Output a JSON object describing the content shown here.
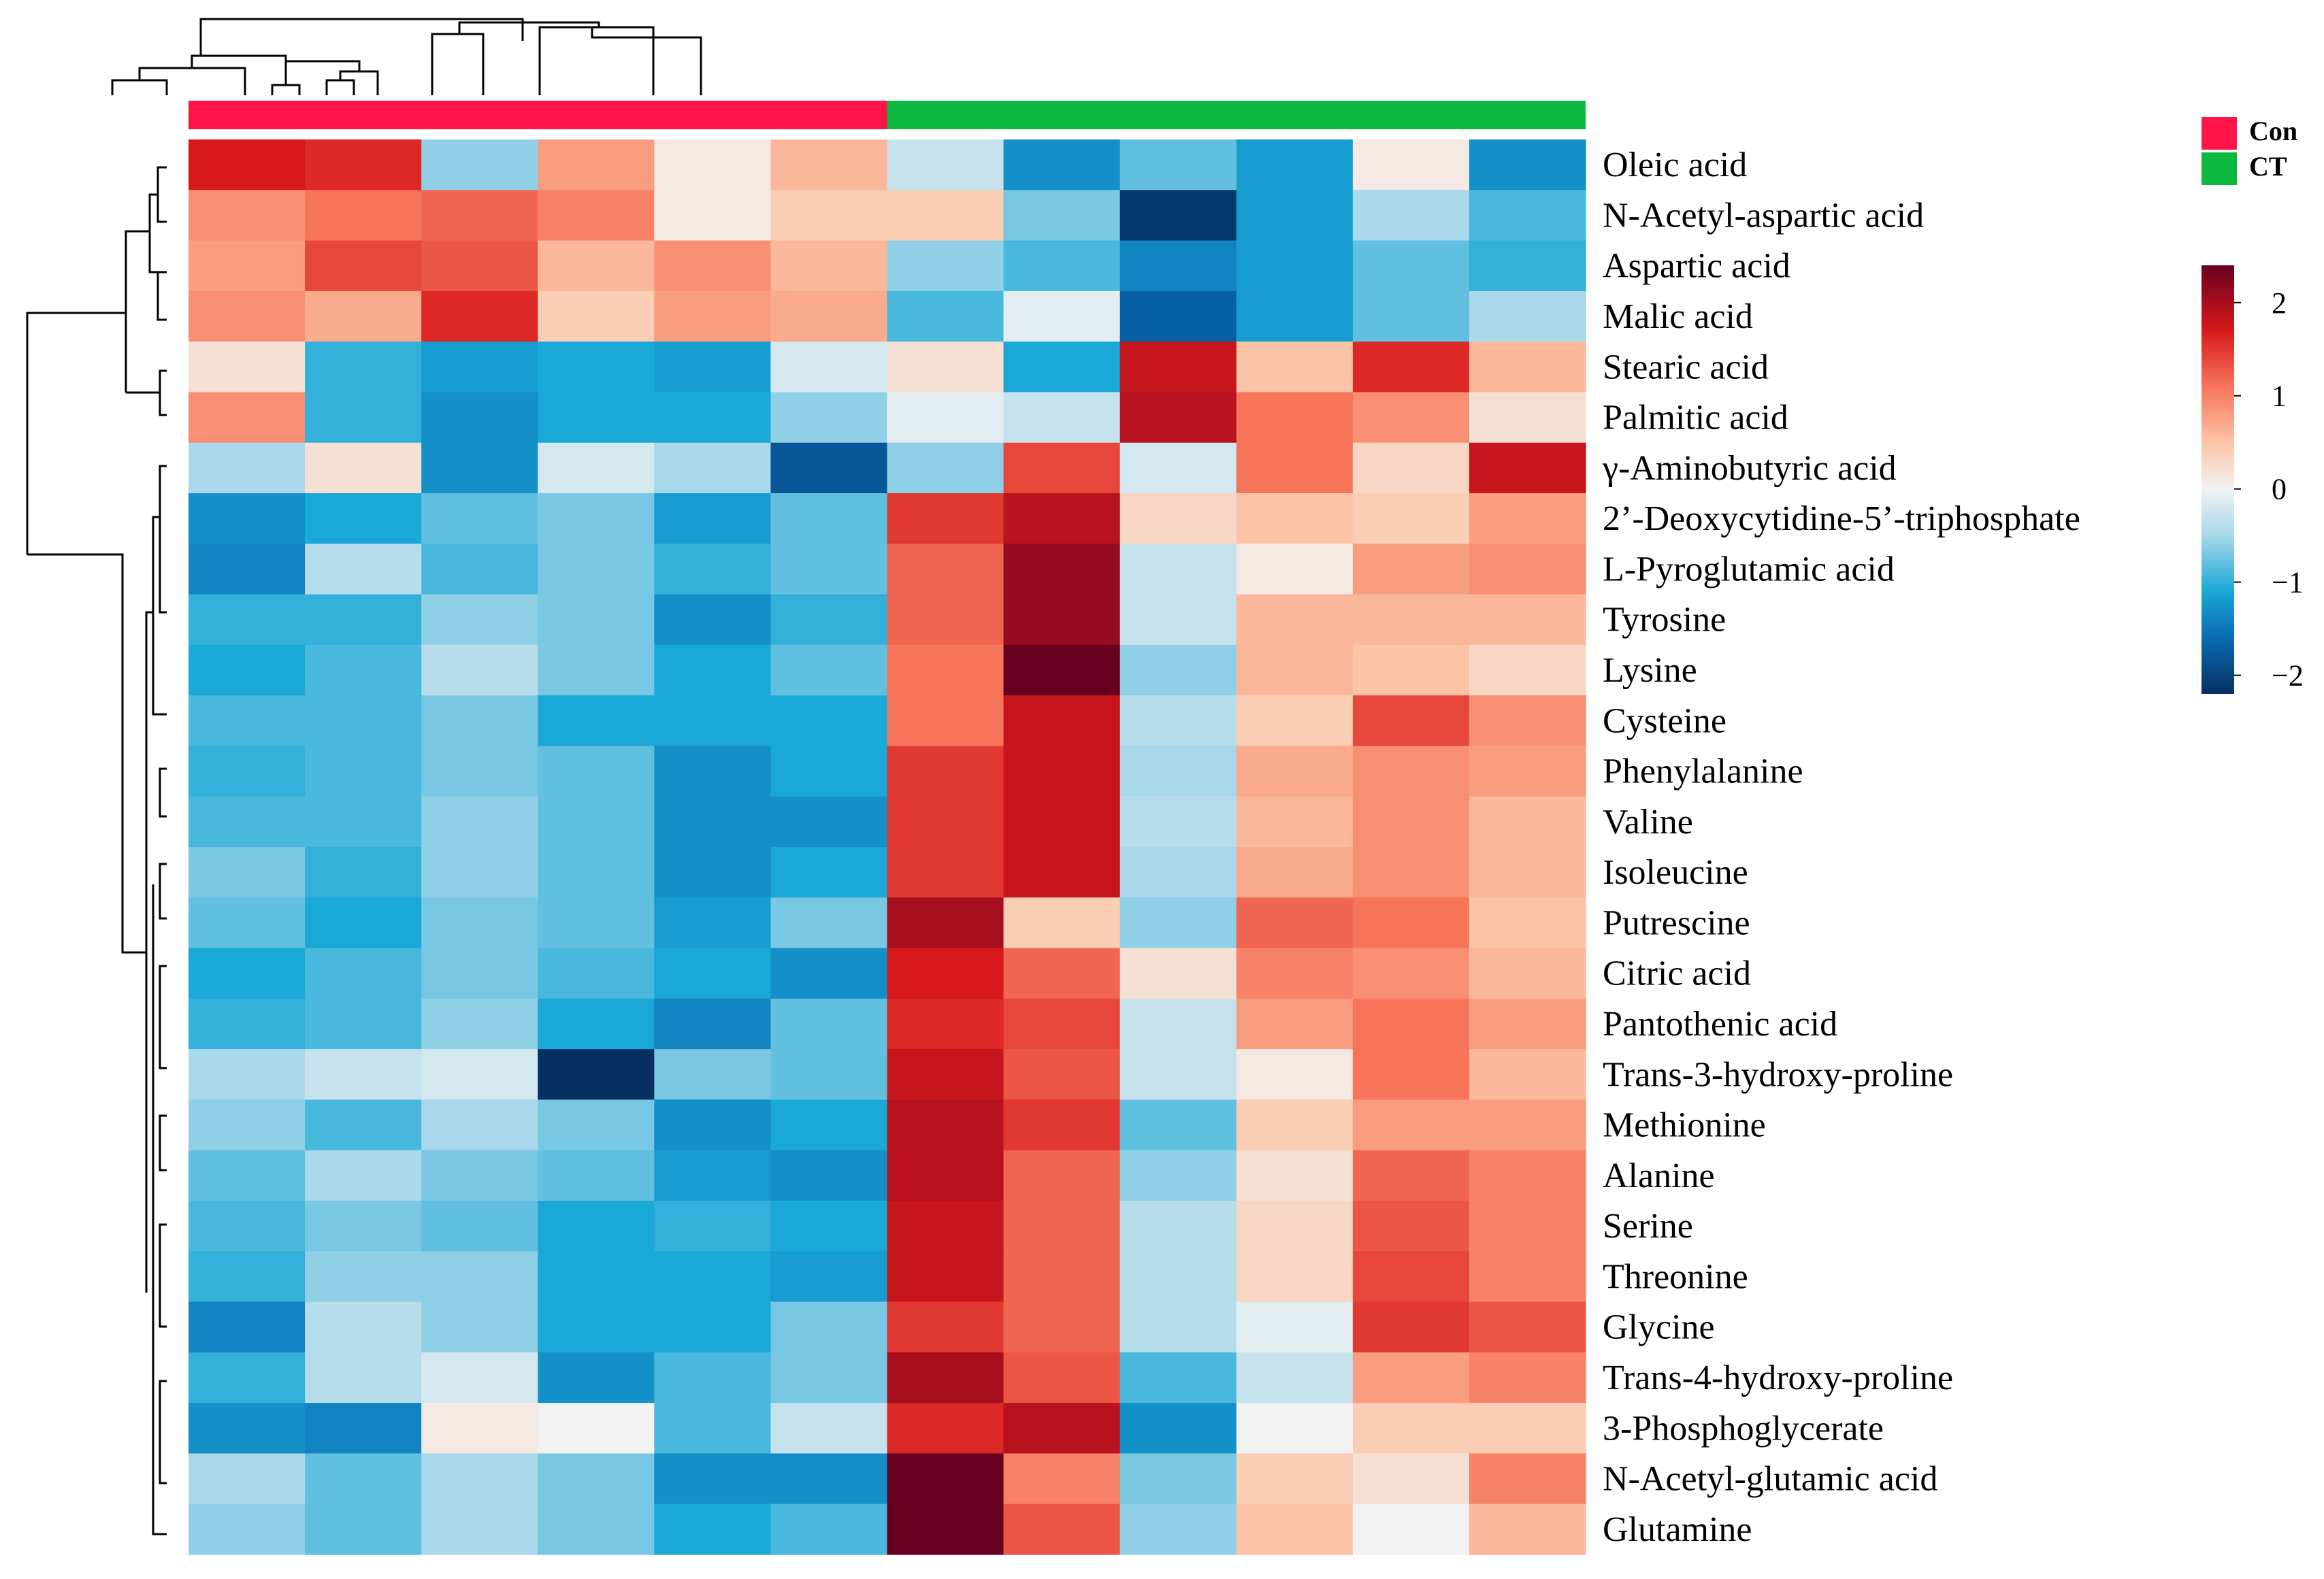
{
  "chart_data": {
    "type": "heatmap",
    "title": "",
    "groups": [
      {
        "name": "Con",
        "color": "#ff1447",
        "columns": 6
      },
      {
        "name": "CT",
        "color": "#0cb83f",
        "columns": 6
      }
    ],
    "rows": [
      "Oleic acid",
      "N-Acetyl-aspartic acid",
      "Aspartic acid",
      "Malic acid",
      "Stearic acid",
      "Palmitic acid",
      "γ-Aminobutyric acid",
      "2’-Deoxycytidine-5’-triphosphate",
      "L-Pyroglutamic acid",
      "Tyrosine",
      "Lysine",
      "Cysteine",
      "Phenylalanine",
      "Valine",
      "Isoleucine",
      "Putrescine",
      "Citric acid",
      "Pantothenic acid",
      "Trans-3-hydroxy-proline",
      "Methionine",
      "Alanine",
      "Serine",
      "Threonine",
      "Glycine",
      "Trans-4-hydroxy-proline",
      "3-Phosphoglycerate",
      "N-Acetyl-glutamic acid",
      "Glutamine"
    ],
    "values": [
      [
        1.7,
        1.6,
        -0.6,
        0.8,
        0.1,
        0.6,
        -0.3,
        -1.3,
        -0.8,
        -1.2,
        0.1,
        -1.3
      ],
      [
        0.9,
        1.1,
        1.2,
        1.0,
        0.1,
        0.4,
        0.4,
        -0.7,
        -2.1,
        -1.2,
        -0.5,
        -0.9
      ],
      [
        0.8,
        1.4,
        1.3,
        0.6,
        0.9,
        0.6,
        -0.6,
        -0.9,
        -1.4,
        -1.2,
        -0.8,
        -1.0
      ],
      [
        0.9,
        0.7,
        1.6,
        0.4,
        0.8,
        0.7,
        -0.9,
        -0.1,
        -1.7,
        -1.2,
        -0.8,
        -0.5
      ],
      [
        0.2,
        -1.0,
        -1.2,
        -1.1,
        -1.2,
        -0.2,
        0.2,
        -1.1,
        1.8,
        0.5,
        1.6,
        0.6
      ],
      [
        0.9,
        -1.0,
        -1.3,
        -1.1,
        -1.1,
        -0.6,
        -0.1,
        -0.3,
        1.9,
        1.1,
        0.9,
        0.2
      ],
      [
        -0.5,
        0.2,
        -1.3,
        -0.2,
        -0.5,
        -1.8,
        -0.6,
        1.4,
        -0.2,
        1.1,
        0.3,
        1.8
      ],
      [
        -1.3,
        -1.1,
        -0.8,
        -0.7,
        -1.2,
        -0.8,
        1.5,
        1.9,
        0.3,
        0.5,
        0.4,
        0.8
      ],
      [
        -1.4,
        -0.4,
        -0.9,
        -0.7,
        -1.0,
        -0.8,
        1.2,
        2.1,
        -0.3,
        0.1,
        0.8,
        0.9
      ],
      [
        -1.0,
        -1.0,
        -0.6,
        -0.7,
        -1.3,
        -1.0,
        1.2,
        2.1,
        -0.3,
        0.6,
        0.6,
        0.6
      ],
      [
        -1.1,
        -0.9,
        -0.4,
        -0.7,
        -1.1,
        -0.8,
        1.1,
        2.4,
        -0.6,
        0.6,
        0.5,
        0.3
      ],
      [
        -0.9,
        -0.9,
        -0.7,
        -1.1,
        -1.1,
        -1.1,
        1.1,
        1.8,
        -0.4,
        0.4,
        1.4,
        0.9
      ],
      [
        -1.0,
        -0.9,
        -0.7,
        -0.8,
        -1.3,
        -1.1,
        1.5,
        1.8,
        -0.5,
        0.7,
        0.9,
        0.8
      ],
      [
        -0.9,
        -0.9,
        -0.6,
        -0.8,
        -1.3,
        -1.3,
        1.5,
        1.8,
        -0.4,
        0.6,
        0.9,
        0.6
      ],
      [
        -0.7,
        -1.0,
        -0.6,
        -0.8,
        -1.3,
        -1.1,
        1.5,
        1.8,
        -0.5,
        0.7,
        0.9,
        0.6
      ],
      [
        -0.8,
        -1.1,
        -0.7,
        -0.8,
        -1.2,
        -0.7,
        2.0,
        0.4,
        -0.6,
        1.2,
        1.1,
        0.5
      ],
      [
        -1.1,
        -0.9,
        -0.7,
        -0.9,
        -1.1,
        -1.3,
        1.7,
        1.2,
        0.2,
        1.0,
        0.9,
        0.6
      ],
      [
        -1.0,
        -0.9,
        -0.6,
        -1.1,
        -1.4,
        -0.8,
        1.6,
        1.4,
        -0.3,
        0.8,
        1.1,
        0.8
      ],
      [
        -0.5,
        -0.3,
        -0.2,
        -2.2,
        -0.7,
        -0.8,
        1.8,
        1.3,
        -0.3,
        0.1,
        1.1,
        0.6
      ],
      [
        -0.6,
        -0.9,
        -0.5,
        -0.7,
        -1.3,
        -1.1,
        1.9,
        1.5,
        -0.8,
        0.4,
        0.8,
        0.8
      ],
      [
        -0.8,
        -0.5,
        -0.7,
        -0.8,
        -1.2,
        -1.3,
        1.9,
        1.2,
        -0.6,
        0.2,
        1.2,
        1.0
      ],
      [
        -0.9,
        -0.7,
        -0.8,
        -1.1,
        -1.0,
        -1.1,
        1.8,
        1.2,
        -0.4,
        0.3,
        1.3,
        1.0
      ],
      [
        -1.0,
        -0.6,
        -0.6,
        -1.1,
        -1.1,
        -1.2,
        1.8,
        1.2,
        -0.4,
        0.3,
        1.4,
        1.0
      ],
      [
        -1.4,
        -0.4,
        -0.6,
        -1.1,
        -1.1,
        -0.7,
        1.5,
        1.2,
        -0.4,
        -0.1,
        1.5,
        1.3
      ],
      [
        -1.0,
        -0.4,
        -0.2,
        -1.3,
        -0.9,
        -0.7,
        2.0,
        1.3,
        -0.9,
        -0.3,
        0.8,
        1.0
      ],
      [
        -1.3,
        -1.4,
        0.1,
        0.0,
        -0.9,
        -0.3,
        1.6,
        1.9,
        -1.3,
        0.0,
        0.4,
        0.4
      ],
      [
        -0.5,
        -0.8,
        -0.5,
        -0.7,
        -1.3,
        -1.3,
        2.4,
        1.0,
        -0.7,
        0.4,
        0.2,
        1.0
      ],
      [
        -0.6,
        -0.8,
        -0.5,
        -0.7,
        -1.1,
        -0.9,
        2.4,
        1.3,
        -0.6,
        0.5,
        0.0,
        0.6
      ]
    ],
    "color_scale": {
      "min": -2.2,
      "max": 2.4,
      "stops": [
        {
          "value": -2.2,
          "color": "#053061"
        },
        {
          "value": -1.6,
          "color": "#0a6bb2"
        },
        {
          "value": -1.1,
          "color": "#1aa8d6"
        },
        {
          "value": -0.5,
          "color": "#a8d8ea"
        },
        {
          "value": 0.0,
          "color": "#f2f2f2"
        },
        {
          "value": 0.5,
          "color": "#fcc4a6"
        },
        {
          "value": 1.1,
          "color": "#f6755a"
        },
        {
          "value": 1.7,
          "color": "#d7191c"
        },
        {
          "value": 2.4,
          "color": "#67001f"
        }
      ]
    },
    "colorbar": {
      "ticks": [
        2,
        1,
        0,
        -1,
        -2
      ],
      "tick_labels": [
        "2",
        "1",
        "0",
        "−1",
        "−2"
      ]
    },
    "legend_position": "top-right"
  }
}
